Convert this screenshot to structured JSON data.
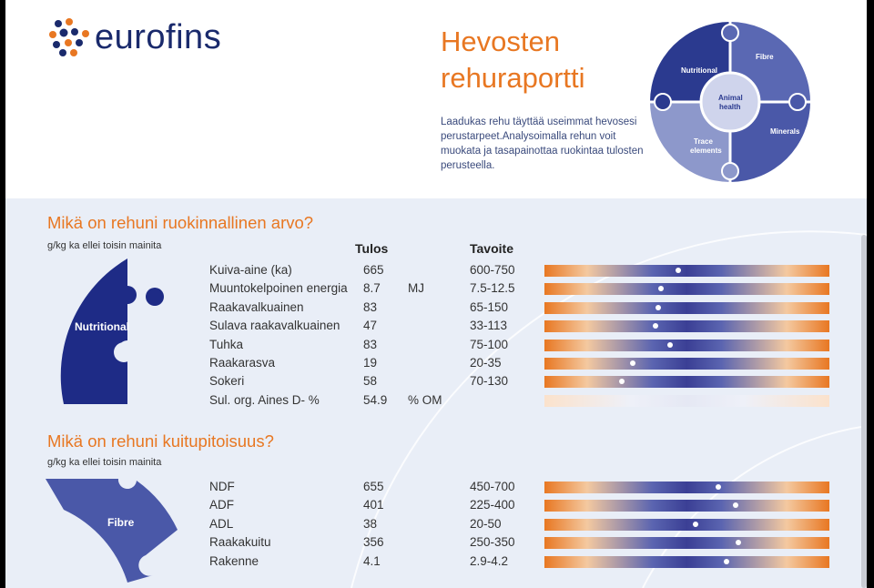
{
  "header": {
    "brand": "eurofins",
    "title_line1": "Hevosten",
    "title_line2": "rehuraportti",
    "intro": "Laadukas rehu täyttää useimmat hevosesi perustarpeet.Analysoimalla rehun voit muokata ja tasapainottaa ruokintaa tulosten perusteella."
  },
  "puzzle": {
    "nutritional": "Nutritional",
    "fibre": "Fibre",
    "minerals": "Minerals",
    "trace1": "Trace",
    "trace2": "elements",
    "center1": "Animal",
    "center2": "health"
  },
  "section1": {
    "heading": "Mikä on rehuni ruokinnallinen arvo?",
    "unit_note": "g/kg ka ellei toisin mainita",
    "col_result": "Tulos",
    "col_target": "Tavoite",
    "piece_label": "Nutritional",
    "rows": [
      {
        "name": "Kuiva-aine (ka)",
        "value": "665",
        "unit": "",
        "target": "600-750",
        "marker": 0.47
      },
      {
        "name": "Muuntokelpoinen energia",
        "value": "8.7",
        "unit": "MJ",
        "target": "7.5-12.5",
        "marker": 0.41
      },
      {
        "name": "Raakavalkuainen",
        "value": "83",
        "unit": "",
        "target": "65-150",
        "marker": 0.4
      },
      {
        "name": "Sulava raakavalkuainen",
        "value": "47",
        "unit": "",
        "target": "33-113",
        "marker": 0.39
      },
      {
        "name": "Tuhka",
        "value": "83",
        "unit": "",
        "target": "75-100",
        "marker": 0.44
      },
      {
        "name": "Raakarasva",
        "value": "19",
        "unit": "",
        "target": "20-35",
        "marker": 0.31
      },
      {
        "name": "Sokeri",
        "value": "58",
        "unit": "",
        "target": "70-130",
        "marker": 0.27
      },
      {
        "name": "Sul. org. Aines D- %",
        "value": "54.9",
        "unit": "% OM",
        "target": "",
        "marker": null
      }
    ]
  },
  "section2": {
    "heading": "Mikä on rehuni kuitupitoisuus?",
    "unit_note": "g/kg ka ellei toisin mainita",
    "piece_label": "Fibre",
    "rows": [
      {
        "name": "NDF",
        "value": "655",
        "unit": "",
        "target": "450-700",
        "marker": 0.61
      },
      {
        "name": "ADF",
        "value": "401",
        "unit": "",
        "target": "225-400",
        "marker": 0.67
      },
      {
        "name": "ADL",
        "value": "38",
        "unit": "",
        "target": "20-50",
        "marker": 0.53
      },
      {
        "name": "Raakakuitu",
        "value": "356",
        "unit": "",
        "target": "250-350",
        "marker": 0.68
      },
      {
        "name": "Rakenne",
        "value": "4.1",
        "unit": "",
        "target": "2.9-4.2",
        "marker": 0.64
      }
    ]
  },
  "colors": {
    "orange": "#e87722",
    "navy": "#1a2a6c",
    "blue": "#3b3f95"
  }
}
